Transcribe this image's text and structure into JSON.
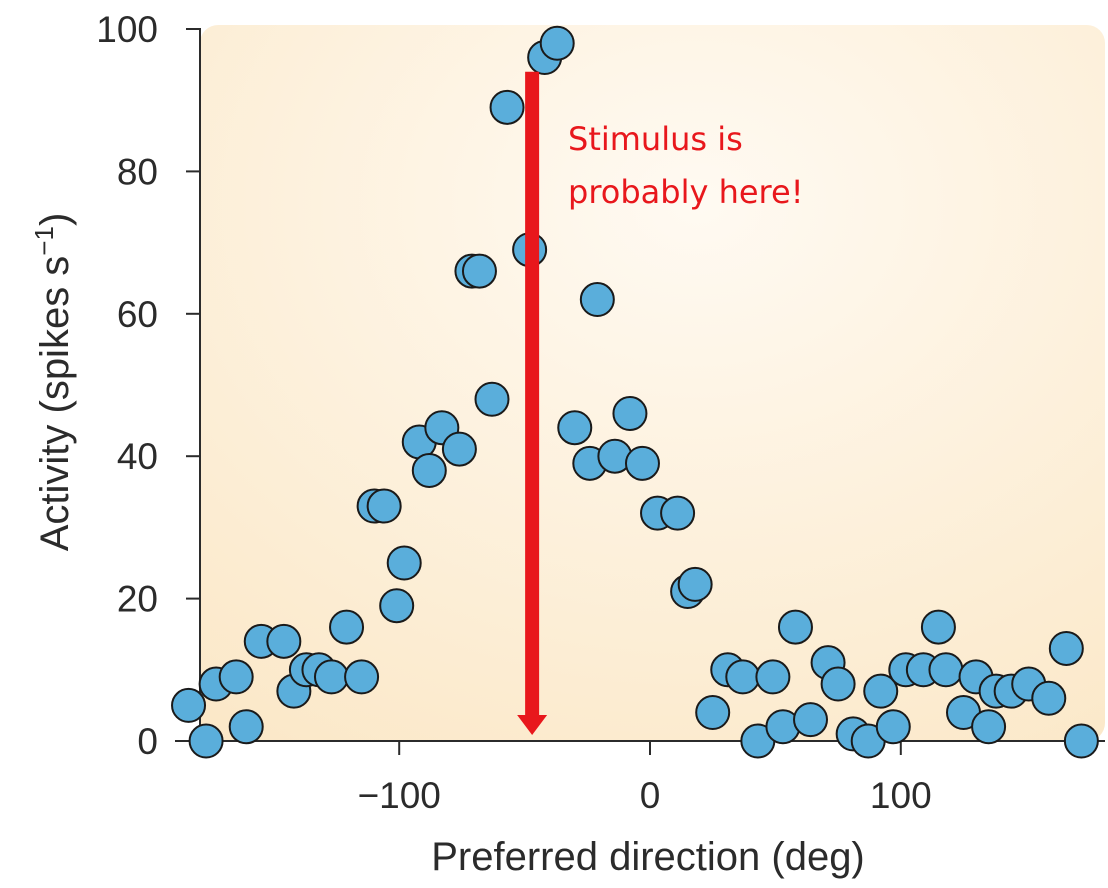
{
  "chart_data": {
    "type": "scatter",
    "title": "",
    "xlabel": "Preferred direction (deg)",
    "ylabel_main": "Activity (spikes s",
    "ylabel_sup": "−1",
    "ylabel_close": ")",
    "xlim": [
      -185,
      175
    ],
    "ylim": [
      0,
      100
    ],
    "xticks": [
      -100,
      0,
      100
    ],
    "xtick_labels": [
      "−100",
      "0",
      "100"
    ],
    "yticks": [
      0,
      20,
      40,
      60,
      80,
      100
    ],
    "ytick_labels": [
      "0",
      "20",
      "40",
      "60",
      "80",
      "100"
    ],
    "grid": false,
    "point_color": "#5aaedb",
    "point_edge_color": "#1a1a1a",
    "background_color": "#fdf3e2",
    "points": [
      {
        "x": -184,
        "y": 5
      },
      {
        "x": -177,
        "y": 0
      },
      {
        "x": -173,
        "y": 8
      },
      {
        "x": -165,
        "y": 9
      },
      {
        "x": -161,
        "y": 2
      },
      {
        "x": -155,
        "y": 14
      },
      {
        "x": -146,
        "y": 14
      },
      {
        "x": -142,
        "y": 7
      },
      {
        "x": -137,
        "y": 10
      },
      {
        "x": -132,
        "y": 10
      },
      {
        "x": -127,
        "y": 9
      },
      {
        "x": -121,
        "y": 16
      },
      {
        "x": -115,
        "y": 9
      },
      {
        "x": -110,
        "y": 33
      },
      {
        "x": -106,
        "y": 33
      },
      {
        "x": -101,
        "y": 19
      },
      {
        "x": -98,
        "y": 25
      },
      {
        "x": -92,
        "y": 42
      },
      {
        "x": -88,
        "y": 38
      },
      {
        "x": -83,
        "y": 44
      },
      {
        "x": -76,
        "y": 41
      },
      {
        "x": -71,
        "y": 66
      },
      {
        "x": -68,
        "y": 66
      },
      {
        "x": -63,
        "y": 48
      },
      {
        "x": -57,
        "y": 89
      },
      {
        "x": -48,
        "y": 69
      },
      {
        "x": -42,
        "y": 96
      },
      {
        "x": -37,
        "y": 98
      },
      {
        "x": -30,
        "y": 44
      },
      {
        "x": -24,
        "y": 39
      },
      {
        "x": -21,
        "y": 62
      },
      {
        "x": -14,
        "y": 40
      },
      {
        "x": -8,
        "y": 46
      },
      {
        "x": -3,
        "y": 39
      },
      {
        "x": 3,
        "y": 32
      },
      {
        "x": 11,
        "y": 32
      },
      {
        "x": 15,
        "y": 21
      },
      {
        "x": 18,
        "y": 22
      },
      {
        "x": 25,
        "y": 4
      },
      {
        "x": 31,
        "y": 10
      },
      {
        "x": 37,
        "y": 9
      },
      {
        "x": 43,
        "y": 0
      },
      {
        "x": 49,
        "y": 9
      },
      {
        "x": 53,
        "y": 2
      },
      {
        "x": 58,
        "y": 16
      },
      {
        "x": 64,
        "y": 3
      },
      {
        "x": 71,
        "y": 11
      },
      {
        "x": 75,
        "y": 8
      },
      {
        "x": 81,
        "y": 1
      },
      {
        "x": 87,
        "y": 0
      },
      {
        "x": 92,
        "y": 7
      },
      {
        "x": 97,
        "y": 2
      },
      {
        "x": 102,
        "y": 10
      },
      {
        "x": 109,
        "y": 10
      },
      {
        "x": 115,
        "y": 16
      },
      {
        "x": 118,
        "y": 10
      },
      {
        "x": 125,
        "y": 4
      },
      {
        "x": 130,
        "y": 9
      },
      {
        "x": 135,
        "y": 2
      },
      {
        "x": 138,
        "y": 7
      },
      {
        "x": 144,
        "y": 7
      },
      {
        "x": 151,
        "y": 8
      },
      {
        "x": 159,
        "y": 6
      },
      {
        "x": 166,
        "y": 13
      },
      {
        "x": 172,
        "y": 0
      }
    ],
    "annotation": {
      "line1": "Stimulus is",
      "line2": "probably here!",
      "arrow_x": -47,
      "arrow_y_top": 94,
      "arrow_y_bottom": 0,
      "color": "#e8171c"
    }
  }
}
